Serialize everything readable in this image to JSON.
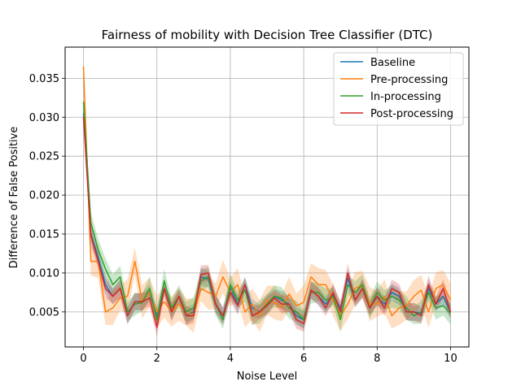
{
  "chart_data": {
    "type": "line",
    "title": "Fairness of mobility with Decision Tree Classifier (DTC)",
    "xlabel": "Noise Level",
    "ylabel": "Difference of False Positive",
    "xlim": [
      -0.5,
      10.5
    ],
    "ylim": [
      0.0005,
      0.039
    ],
    "xticks": [
      0,
      2,
      4,
      6,
      8,
      10
    ],
    "xtick_labels": [
      "0",
      "2",
      "4",
      "6",
      "8",
      "10"
    ],
    "yticks": [
      0.005,
      0.01,
      0.015,
      0.02,
      0.025,
      0.03,
      0.035
    ],
    "ytick_labels": [
      "0.005",
      "0.010",
      "0.015",
      "0.020",
      "0.025",
      "0.030",
      "0.035"
    ],
    "grid": true,
    "legend_position": "top-right",
    "x": [
      0,
      0.2,
      0.4,
      0.6,
      0.8,
      1.0,
      1.2,
      1.4,
      1.6,
      1.8,
      2.0,
      2.2,
      2.4,
      2.6,
      2.8,
      3.0,
      3.2,
      3.4,
      3.6,
      3.8,
      4.0,
      4.2,
      4.4,
      4.6,
      4.8,
      5.0,
      5.2,
      5.4,
      5.6,
      5.8,
      6.0,
      6.2,
      6.4,
      6.6,
      6.8,
      7.0,
      7.2,
      7.4,
      7.6,
      7.8,
      8.0,
      8.2,
      8.4,
      8.6,
      8.8,
      9.0,
      9.2,
      9.4,
      9.6,
      9.8,
      10.0
    ],
    "series": [
      {
        "name": "Baseline",
        "color": "#1f77b4",
        "values": [
          0.0305,
          0.015,
          0.012,
          0.0085,
          0.007,
          0.008,
          0.0045,
          0.0063,
          0.0063,
          0.0075,
          0.0045,
          0.008,
          0.005,
          0.007,
          0.0045,
          0.005,
          0.0095,
          0.0092,
          0.006,
          0.0045,
          0.008,
          0.006,
          0.0085,
          0.0055,
          0.005,
          0.006,
          0.007,
          0.0065,
          0.006,
          0.0045,
          0.004,
          0.0078,
          0.007,
          0.006,
          0.0072,
          0.0055,
          0.0093,
          0.0065,
          0.008,
          0.0055,
          0.007,
          0.006,
          0.0075,
          0.007,
          0.005,
          0.005,
          0.0048,
          0.008,
          0.006,
          0.007,
          0.005
        ],
        "band": 0.0012
      },
      {
        "name": "Pre-processing",
        "color": "#ff7f0e",
        "values": [
          0.0365,
          0.0115,
          0.0115,
          0.005,
          0.0055,
          0.0068,
          0.007,
          0.0115,
          0.0063,
          0.0075,
          0.005,
          0.0063,
          0.005,
          0.006,
          0.005,
          0.0045,
          0.008,
          0.0075,
          0.007,
          0.0095,
          0.0075,
          0.0085,
          0.005,
          0.006,
          0.0045,
          0.0065,
          0.0062,
          0.0055,
          0.0073,
          0.0058,
          0.0062,
          0.0095,
          0.0085,
          0.0085,
          0.0065,
          0.0045,
          0.006,
          0.008,
          0.0085,
          0.006,
          0.006,
          0.007,
          0.0045,
          0.0055,
          0.0058,
          0.007,
          0.0078,
          0.005,
          0.008,
          0.0085,
          0.0065
        ],
        "band": 0.0022
      },
      {
        "name": "In-processing",
        "color": "#2ca02c",
        "values": [
          0.032,
          0.0165,
          0.013,
          0.0105,
          0.0085,
          0.0095,
          0.005,
          0.006,
          0.0062,
          0.008,
          0.004,
          0.009,
          0.0055,
          0.007,
          0.005,
          0.0055,
          0.009,
          0.0095,
          0.006,
          0.004,
          0.0085,
          0.0065,
          0.0078,
          0.0045,
          0.005,
          0.006,
          0.007,
          0.0068,
          0.0055,
          0.005,
          0.004,
          0.0075,
          0.0075,
          0.0065,
          0.007,
          0.004,
          0.0085,
          0.0075,
          0.0085,
          0.0055,
          0.0075,
          0.0065,
          0.007,
          0.0065,
          0.0055,
          0.0045,
          0.005,
          0.0075,
          0.0055,
          0.0058,
          0.0048
        ],
        "band": 0.0015
      },
      {
        "name": "Post-processing",
        "color": "#d62728",
        "values": [
          0.03,
          0.0148,
          0.0115,
          0.008,
          0.007,
          0.008,
          0.0045,
          0.0063,
          0.0063,
          0.0068,
          0.003,
          0.008,
          0.005,
          0.007,
          0.0045,
          0.0045,
          0.0098,
          0.01,
          0.006,
          0.0045,
          0.0075,
          0.0058,
          0.0085,
          0.0045,
          0.005,
          0.0058,
          0.0068,
          0.006,
          0.006,
          0.004,
          0.0035,
          0.0078,
          0.007,
          0.0055,
          0.0075,
          0.005,
          0.01,
          0.0065,
          0.008,
          0.0055,
          0.007,
          0.0055,
          0.008,
          0.0075,
          0.005,
          0.005,
          0.0045,
          0.0085,
          0.006,
          0.008,
          0.005
        ],
        "band": 0.0012
      }
    ]
  }
}
